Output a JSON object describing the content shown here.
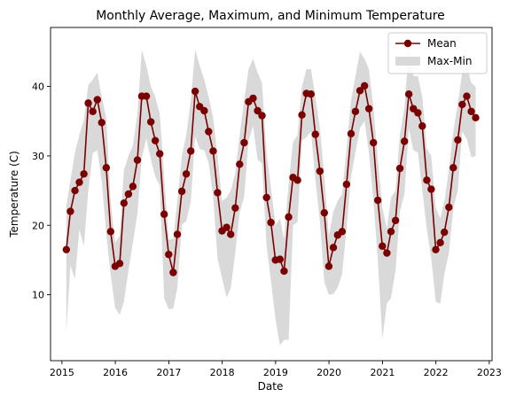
{
  "chart_data": {
    "type": "line",
    "title": "Monthly Average, Maximum, and Minimum Temperature",
    "xlabel": "Date",
    "ylabel": "Temperature (C)",
    "xlim": [
      "2014-10-15",
      "2023-01-20"
    ],
    "ylim": [
      0.5,
      48.5
    ],
    "x_ticks": [
      "2015",
      "2016",
      "2017",
      "2018",
      "2019",
      "2020",
      "2021",
      "2022",
      "2023"
    ],
    "y_ticks": [
      10,
      20,
      30,
      40
    ],
    "grid": false,
    "legend": {
      "position": "top-right",
      "entries": [
        {
          "label": "Mean",
          "kind": "line-marker",
          "color": "#7a0000"
        },
        {
          "label": "Max-Min",
          "kind": "band",
          "color": "#d9d9d9"
        }
      ]
    },
    "series": [
      {
        "name": "Mean",
        "color": "#7a0000",
        "dates": [
          "2015-01-31",
          "2015-02-28",
          "2015-03-31",
          "2015-04-30",
          "2015-05-31",
          "2015-06-30",
          "2015-07-31",
          "2015-08-31",
          "2015-09-30",
          "2015-10-31",
          "2015-11-30",
          "2015-12-31",
          "2016-01-31",
          "2016-02-29",
          "2016-03-31",
          "2016-04-30",
          "2016-05-31",
          "2016-06-30",
          "2016-07-31",
          "2016-08-31",
          "2016-09-30",
          "2016-10-31",
          "2016-11-30",
          "2016-12-31",
          "2017-01-31",
          "2017-02-28",
          "2017-03-31",
          "2017-04-30",
          "2017-05-31",
          "2017-06-30",
          "2017-07-31",
          "2017-08-31",
          "2017-09-30",
          "2017-10-31",
          "2017-11-30",
          "2017-12-31",
          "2018-01-31",
          "2018-02-28",
          "2018-03-31",
          "2018-04-30",
          "2018-05-31",
          "2018-06-30",
          "2018-07-31",
          "2018-08-31",
          "2018-09-30",
          "2018-10-31",
          "2018-11-30",
          "2018-12-31",
          "2019-01-31",
          "2019-02-28",
          "2019-03-31",
          "2019-04-30",
          "2019-05-31",
          "2019-06-30",
          "2019-07-31",
          "2019-08-31",
          "2019-09-30",
          "2019-10-31",
          "2019-11-30",
          "2019-12-31",
          "2020-01-31",
          "2020-02-29",
          "2020-03-31",
          "2020-04-30",
          "2020-05-31",
          "2020-06-30",
          "2020-07-31",
          "2020-08-31",
          "2020-09-30",
          "2020-10-31",
          "2020-11-30",
          "2020-12-31",
          "2021-01-31",
          "2021-02-28",
          "2021-03-31",
          "2021-04-30",
          "2021-05-31",
          "2021-06-30",
          "2021-07-31",
          "2021-08-31",
          "2021-09-30",
          "2021-10-31",
          "2021-11-30",
          "2021-12-31",
          "2022-01-31",
          "2022-02-28",
          "2022-03-31",
          "2022-04-30",
          "2022-05-31",
          "2022-06-30",
          "2022-07-31",
          "2022-08-31",
          "2022-09-30"
        ],
        "values": [
          16.5,
          22.0,
          25.0,
          26.2,
          27.4,
          37.6,
          36.4,
          38.1,
          34.8,
          28.3,
          19.1,
          14.1,
          14.5,
          23.2,
          24.5,
          25.6,
          29.4,
          38.6,
          38.6,
          34.9,
          32.2,
          30.3,
          21.6,
          15.8,
          13.2,
          18.7,
          24.9,
          27.4,
          30.7,
          39.3,
          37.1,
          36.5,
          33.5,
          30.7,
          24.7,
          19.2,
          19.7,
          18.7,
          22.5,
          28.8,
          31.9,
          37.8,
          38.3,
          36.5,
          35.8,
          24.0,
          20.4,
          15.0,
          15.1,
          13.4,
          21.2,
          26.9,
          26.5,
          35.9,
          39.0,
          38.9,
          33.1,
          27.8,
          21.8,
          14.1,
          16.8,
          18.6,
          19.1,
          25.9,
          33.2,
          36.4,
          39.4,
          40.1,
          36.8,
          31.9,
          23.6,
          17.0,
          16.0,
          19.1,
          20.7,
          28.2,
          32.1,
          38.9,
          36.8,
          36.2,
          34.3,
          26.5,
          25.2,
          16.5,
          17.5,
          19.0,
          22.6,
          28.3,
          32.3,
          37.4,
          38.6,
          36.4,
          35.5
        ]
      },
      {
        "name": "Max-Min",
        "color": "#d9d9d9",
        "dates": [
          "2015-01-31",
          "2015-02-28",
          "2015-03-31",
          "2015-04-30",
          "2015-05-31",
          "2015-06-30",
          "2015-07-31",
          "2015-08-31",
          "2015-09-30",
          "2015-10-31",
          "2015-11-30",
          "2015-12-31",
          "2016-01-31",
          "2016-02-29",
          "2016-03-31",
          "2016-04-30",
          "2016-05-31",
          "2016-06-30",
          "2016-07-31",
          "2016-08-31",
          "2016-09-30",
          "2016-10-31",
          "2016-11-30",
          "2016-12-31",
          "2017-01-31",
          "2017-02-28",
          "2017-03-31",
          "2017-04-30",
          "2017-05-31",
          "2017-06-30",
          "2017-07-31",
          "2017-08-31",
          "2017-09-30",
          "2017-10-31",
          "2017-11-30",
          "2017-12-31",
          "2018-01-31",
          "2018-02-28",
          "2018-03-31",
          "2018-04-30",
          "2018-05-31",
          "2018-06-30",
          "2018-07-31",
          "2018-08-31",
          "2018-09-30",
          "2018-10-31",
          "2018-11-30",
          "2018-12-31",
          "2019-01-31",
          "2019-02-28",
          "2019-03-31",
          "2019-04-30",
          "2019-05-31",
          "2019-06-30",
          "2019-07-31",
          "2019-08-31",
          "2019-09-30",
          "2019-10-31",
          "2019-11-30",
          "2019-12-31",
          "2020-01-31",
          "2020-02-29",
          "2020-03-31",
          "2020-04-30",
          "2020-05-31",
          "2020-06-30",
          "2020-07-31",
          "2020-08-31",
          "2020-09-30",
          "2020-10-31",
          "2020-11-30",
          "2020-12-31",
          "2021-01-31",
          "2021-02-28",
          "2021-03-31",
          "2021-04-30",
          "2021-05-31",
          "2021-06-30",
          "2021-07-31",
          "2021-08-31",
          "2021-09-30",
          "2021-10-31",
          "2021-11-30",
          "2021-12-31",
          "2022-01-31",
          "2022-02-28",
          "2022-03-31",
          "2022-04-30",
          "2022-05-31",
          "2022-06-30",
          "2022-07-31",
          "2022-08-31",
          "2022-09-30"
        ],
        "upper": [
          22.8,
          26.5,
          30.5,
          33.0,
          35.2,
          40.2,
          41.0,
          42.0,
          38.5,
          35.5,
          23.5,
          17.5,
          18.5,
          28.0,
          30.0,
          31.5,
          36.0,
          45.3,
          43.0,
          40.0,
          38.5,
          36.0,
          27.0,
          18.0,
          18.0,
          23.5,
          30.0,
          33.0,
          38.0,
          45.3,
          43.0,
          41.0,
          38.5,
          35.5,
          30.0,
          23.5,
          24.0,
          25.0,
          27.5,
          33.0,
          38.0,
          42.5,
          44.0,
          42.0,
          40.5,
          30.5,
          25.5,
          20.0,
          21.0,
          18.0,
          26.0,
          32.0,
          33.0,
          40.0,
          42.5,
          42.5,
          38.5,
          34.0,
          27.0,
          18.5,
          22.0,
          23.5,
          24.5,
          31.0,
          38.0,
          41.5,
          45.0,
          44.0,
          42.5,
          37.0,
          29.5,
          22.5,
          19.5,
          24.0,
          25.0,
          33.0,
          37.0,
          45.5,
          41.5,
          41.5,
          38.5,
          31.0,
          30.0,
          22.5,
          21.0,
          23.5,
          28.0,
          33.5,
          37.5,
          42.0,
          43.0,
          40.5,
          40.0
        ],
        "lower": [
          4.8,
          14.2,
          12.3,
          19.4,
          17.0,
          25.0,
          30.4,
          30.8,
          26.4,
          18.8,
          12.9,
          8.1,
          7.1,
          9.0,
          13.5,
          17.5,
          21.7,
          29.7,
          32.5,
          29.5,
          27.0,
          25.8,
          9.5,
          7.9,
          8.0,
          11.0,
          20.1,
          20.6,
          23.4,
          32.8,
          31.0,
          30.8,
          29.0,
          24.1,
          15.2,
          12.4,
          9.6,
          10.9,
          16.0,
          21.8,
          24.1,
          32.2,
          34.3,
          29.5,
          28.9,
          17.1,
          12.0,
          6.5,
          2.7,
          3.5,
          3.5,
          20.0,
          20.5,
          32.2,
          32.7,
          33.5,
          26.6,
          20.5,
          11.8,
          10.0,
          10.1,
          11.0,
          13.0,
          19.5,
          27.0,
          30.5,
          34.0,
          35.0,
          30.5,
          23.5,
          15.0,
          3.6,
          8.8,
          9.5,
          13.5,
          22.0,
          24.5,
          34.0,
          30.8,
          30.5,
          25.0,
          19.5,
          15.3,
          9.0,
          8.7,
          13.0,
          16.0,
          22.5,
          25.0,
          33.5,
          32.5,
          29.8,
          30.0
        ]
      }
    ]
  }
}
